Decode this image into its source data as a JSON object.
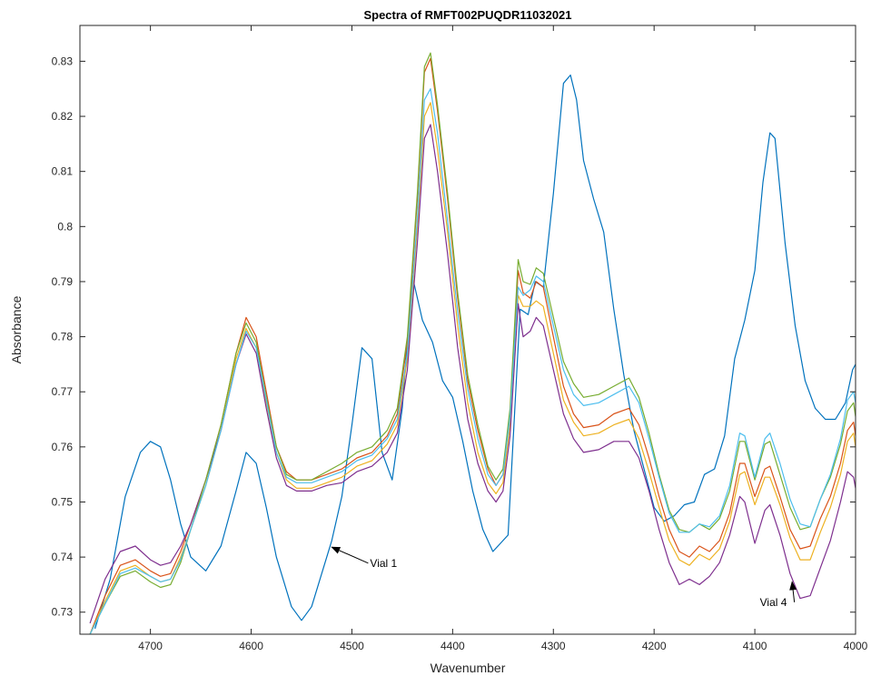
{
  "chart_data": {
    "type": "line",
    "title": "Spectra of RMFT002PUQDR11032021",
    "xlabel": "Wavenumber",
    "ylabel": "Absorbance",
    "xlim": [
      4000,
      4770
    ],
    "ylim": [
      0.726,
      0.8365
    ],
    "x_reversed": true,
    "grid": false,
    "x_ticks": [
      4700,
      4600,
      4500,
      4400,
      4300,
      4200,
      4100,
      4000
    ],
    "y_ticks": [
      0.73,
      0.74,
      0.75,
      0.76,
      0.77,
      0.78,
      0.79,
      0.8,
      0.81,
      0.82,
      0.83
    ],
    "x_tick_labels": [
      "4700",
      "4600",
      "4500",
      "4400",
      "4300",
      "4200",
      "4100",
      "4000"
    ],
    "y_tick_labels": [
      "0.73",
      "0.74",
      "0.75",
      "0.76",
      "0.77",
      "0.78",
      "0.79",
      "0.8",
      "0.81",
      "0.82",
      "0.83"
    ],
    "series": [
      {
        "color": "#0072BD",
        "x": [
          4755,
          4740,
          4725,
          4710,
          4700,
          4690,
          4680,
          4670,
          4660,
          4645,
          4630,
          4615,
          4605,
          4595,
          4585,
          4575,
          4560,
          4550,
          4540,
          4530,
          4520,
          4510,
          4500,
          4490,
          4480,
          4470,
          4460,
          4450,
          4440,
          4430,
          4420,
          4410,
          4400,
          4390,
          4380,
          4370,
          4360,
          4345,
          4333,
          4325,
          4318,
          4310,
          4300,
          4290,
          4283,
          4277,
          4270,
          4260,
          4250,
          4240,
          4230,
          4220,
          4210,
          4200,
          4190,
          4180,
          4170,
          4160,
          4150,
          4140,
          4130,
          4120,
          4110,
          4100,
          4092,
          4085,
          4080,
          4070,
          4060,
          4050,
          4040,
          4030,
          4020,
          4010,
          4003,
          4000
        ],
        "y": [
          0.727,
          0.736,
          0.751,
          0.759,
          0.761,
          0.76,
          0.754,
          0.746,
          0.74,
          0.7375,
          0.742,
          0.752,
          0.759,
          0.757,
          0.749,
          0.74,
          0.731,
          0.7285,
          0.731,
          0.737,
          0.743,
          0.751,
          0.764,
          0.778,
          0.776,
          0.759,
          0.754,
          0.767,
          0.791,
          0.783,
          0.779,
          0.772,
          0.769,
          0.761,
          0.752,
          0.745,
          0.741,
          0.744,
          0.785,
          0.784,
          0.79,
          0.789,
          0.806,
          0.826,
          0.8275,
          0.823,
          0.812,
          0.805,
          0.799,
          0.785,
          0.773,
          0.763,
          0.756,
          0.749,
          0.7465,
          0.7475,
          0.7495,
          0.75,
          0.755,
          0.756,
          0.762,
          0.776,
          0.783,
          0.792,
          0.808,
          0.817,
          0.816,
          0.797,
          0.782,
          0.772,
          0.767,
          0.765,
          0.765,
          0.768,
          0.774,
          0.775
        ]
      },
      {
        "color": "#D95319",
        "x": [
          4760,
          4745,
          4730,
          4715,
          4700,
          4690,
          4680,
          4670,
          4660,
          4645,
          4630,
          4615,
          4605,
          4595,
          4585,
          4575,
          4565,
          4555,
          4540,
          4525,
          4510,
          4495,
          4480,
          4465,
          4455,
          4445,
          4435,
          4428,
          4422,
          4415,
          4405,
          4395,
          4385,
          4375,
          4365,
          4357,
          4350,
          4343,
          4335,
          4330,
          4323,
          4317,
          4310,
          4300,
          4290,
          4280,
          4270,
          4255,
          4240,
          4225,
          4215,
          4205,
          4195,
          4185,
          4175,
          4165,
          4155,
          4145,
          4135,
          4125,
          4115,
          4110,
          4100,
          4090,
          4085,
          4075,
          4065,
          4055,
          4045,
          4035,
          4025,
          4015,
          4008,
          4002,
          4000
        ],
        "y": [
          0.726,
          0.733,
          0.7385,
          0.7395,
          0.7375,
          0.7365,
          0.737,
          0.741,
          0.746,
          0.754,
          0.764,
          0.777,
          0.7835,
          0.78,
          0.77,
          0.76,
          0.7555,
          0.754,
          0.754,
          0.755,
          0.756,
          0.758,
          0.759,
          0.762,
          0.766,
          0.779,
          0.805,
          0.828,
          0.8305,
          0.821,
          0.805,
          0.787,
          0.772,
          0.763,
          0.756,
          0.753,
          0.755,
          0.766,
          0.792,
          0.788,
          0.787,
          0.79,
          0.789,
          0.78,
          0.771,
          0.766,
          0.7635,
          0.764,
          0.766,
          0.767,
          0.764,
          0.758,
          0.751,
          0.745,
          0.741,
          0.74,
          0.742,
          0.741,
          0.743,
          0.748,
          0.757,
          0.757,
          0.751,
          0.756,
          0.7565,
          0.751,
          0.745,
          0.7415,
          0.742,
          0.747,
          0.751,
          0.757,
          0.763,
          0.7645,
          0.762
        ]
      },
      {
        "color": "#EDB120",
        "x": [
          4760,
          4745,
          4730,
          4715,
          4700,
          4690,
          4680,
          4670,
          4660,
          4645,
          4630,
          4615,
          4605,
          4595,
          4585,
          4575,
          4565,
          4555,
          4540,
          4525,
          4510,
          4495,
          4480,
          4465,
          4455,
          4445,
          4435,
          4428,
          4422,
          4415,
          4405,
          4395,
          4385,
          4375,
          4365,
          4357,
          4350,
          4343,
          4335,
          4330,
          4323,
          4317,
          4310,
          4300,
          4290,
          4280,
          4270,
          4255,
          4240,
          4225,
          4215,
          4205,
          4195,
          4185,
          4175,
          4165,
          4155,
          4145,
          4135,
          4125,
          4115,
          4110,
          4100,
          4090,
          4085,
          4075,
          4065,
          4055,
          4045,
          4035,
          4025,
          4015,
          4008,
          4002,
          4000
        ],
        "y": [
          0.726,
          0.732,
          0.7375,
          0.7385,
          0.7365,
          0.7355,
          0.736,
          0.74,
          0.745,
          0.753,
          0.763,
          0.776,
          0.7815,
          0.778,
          0.768,
          0.759,
          0.754,
          0.7525,
          0.7525,
          0.7535,
          0.7545,
          0.7565,
          0.7575,
          0.7605,
          0.764,
          0.776,
          0.8,
          0.82,
          0.8225,
          0.814,
          0.799,
          0.782,
          0.768,
          0.759,
          0.7535,
          0.7515,
          0.7535,
          0.764,
          0.7875,
          0.7855,
          0.7855,
          0.7865,
          0.7855,
          0.777,
          0.7685,
          0.7645,
          0.762,
          0.7625,
          0.764,
          0.765,
          0.7615,
          0.7555,
          0.749,
          0.743,
          0.7395,
          0.7385,
          0.7405,
          0.7395,
          0.7415,
          0.7465,
          0.755,
          0.7555,
          0.7495,
          0.7545,
          0.7545,
          0.7495,
          0.7435,
          0.7395,
          0.7395,
          0.7445,
          0.749,
          0.755,
          0.761,
          0.7625,
          0.76
        ]
      },
      {
        "color": "#7E2F8E",
        "x": [
          4760,
          4745,
          4730,
          4715,
          4700,
          4690,
          4680,
          4670,
          4660,
          4645,
          4630,
          4615,
          4605,
          4595,
          4585,
          4575,
          4565,
          4555,
          4540,
          4525,
          4510,
          4495,
          4480,
          4465,
          4455,
          4445,
          4435,
          4428,
          4422,
          4415,
          4405,
          4395,
          4385,
          4375,
          4365,
          4357,
          4350,
          4343,
          4335,
          4330,
          4323,
          4317,
          4310,
          4300,
          4290,
          4280,
          4270,
          4255,
          4240,
          4225,
          4215,
          4205,
          4195,
          4185,
          4175,
          4165,
          4155,
          4145,
          4135,
          4125,
          4115,
          4110,
          4100,
          4090,
          4085,
          4075,
          4065,
          4055,
          4045,
          4035,
          4025,
          4015,
          4008,
          4002,
          4000
        ],
        "y": [
          0.728,
          0.736,
          0.741,
          0.742,
          0.7395,
          0.7385,
          0.739,
          0.742,
          0.746,
          0.754,
          0.763,
          0.775,
          0.7805,
          0.777,
          0.767,
          0.758,
          0.753,
          0.752,
          0.752,
          0.753,
          0.7535,
          0.7555,
          0.7565,
          0.759,
          0.7625,
          0.774,
          0.797,
          0.816,
          0.8185,
          0.81,
          0.795,
          0.778,
          0.765,
          0.757,
          0.752,
          0.75,
          0.752,
          0.762,
          0.786,
          0.78,
          0.781,
          0.7835,
          0.782,
          0.774,
          0.766,
          0.7615,
          0.759,
          0.7595,
          0.761,
          0.761,
          0.758,
          0.752,
          0.745,
          0.739,
          0.735,
          0.736,
          0.735,
          0.7365,
          0.739,
          0.744,
          0.751,
          0.75,
          0.7425,
          0.7485,
          0.7495,
          0.744,
          0.737,
          0.7325,
          0.733,
          0.738,
          0.743,
          0.75,
          0.7555,
          0.7545,
          0.7525
        ]
      },
      {
        "color": "#77AC30",
        "x": [
          4760,
          4745,
          4730,
          4715,
          4700,
          4690,
          4680,
          4670,
          4660,
          4645,
          4630,
          4615,
          4605,
          4595,
          4585,
          4575,
          4565,
          4555,
          4540,
          4525,
          4510,
          4495,
          4480,
          4465,
          4455,
          4445,
          4435,
          4428,
          4422,
          4415,
          4405,
          4395,
          4385,
          4375,
          4365,
          4357,
          4350,
          4343,
          4335,
          4330,
          4323,
          4317,
          4310,
          4300,
          4290,
          4280,
          4270,
          4255,
          4240,
          4225,
          4215,
          4205,
          4195,
          4185,
          4175,
          4165,
          4155,
          4145,
          4135,
          4125,
          4115,
          4110,
          4100,
          4090,
          4085,
          4075,
          4065,
          4055,
          4045,
          4035,
          4025,
          4015,
          4008,
          4002,
          4000
        ],
        "y": [
          0.726,
          0.7315,
          0.7365,
          0.7375,
          0.7355,
          0.7345,
          0.735,
          0.739,
          0.745,
          0.754,
          0.764,
          0.777,
          0.7825,
          0.779,
          0.769,
          0.76,
          0.755,
          0.754,
          0.754,
          0.7555,
          0.757,
          0.759,
          0.76,
          0.763,
          0.767,
          0.78,
          0.806,
          0.829,
          0.8315,
          0.822,
          0.806,
          0.788,
          0.773,
          0.764,
          0.7565,
          0.754,
          0.756,
          0.767,
          0.794,
          0.79,
          0.7895,
          0.7925,
          0.7915,
          0.7835,
          0.7755,
          0.7715,
          0.769,
          0.7695,
          0.771,
          0.7725,
          0.769,
          0.7625,
          0.755,
          0.7485,
          0.745,
          0.7445,
          0.746,
          0.745,
          0.747,
          0.752,
          0.761,
          0.761,
          0.754,
          0.7605,
          0.761,
          0.755,
          0.749,
          0.745,
          0.7455,
          0.7505,
          0.7545,
          0.7605,
          0.7665,
          0.768,
          0.7655
        ]
      },
      {
        "color": "#4DBEEE",
        "x": [
          4760,
          4745,
          4730,
          4715,
          4700,
          4690,
          4680,
          4670,
          4660,
          4645,
          4630,
          4615,
          4605,
          4595,
          4585,
          4575,
          4565,
          4555,
          4540,
          4525,
          4510,
          4495,
          4480,
          4465,
          4455,
          4445,
          4435,
          4428,
          4422,
          4415,
          4405,
          4395,
          4385,
          4375,
          4365,
          4357,
          4350,
          4343,
          4335,
          4330,
          4323,
          4317,
          4310,
          4300,
          4290,
          4280,
          4270,
          4255,
          4240,
          4225,
          4215,
          4205,
          4195,
          4185,
          4175,
          4165,
          4155,
          4145,
          4135,
          4125,
          4115,
          4110,
          4100,
          4090,
          4085,
          4075,
          4065,
          4055,
          4045,
          4035,
          4025,
          4015,
          4008,
          4002,
          4000
        ],
        "y": [
          0.726,
          0.7315,
          0.737,
          0.738,
          0.7365,
          0.7355,
          0.736,
          0.7395,
          0.745,
          0.753,
          0.763,
          0.775,
          0.781,
          0.778,
          0.7685,
          0.759,
          0.7545,
          0.7535,
          0.7535,
          0.7545,
          0.7555,
          0.7575,
          0.7585,
          0.7615,
          0.765,
          0.777,
          0.8015,
          0.823,
          0.825,
          0.817,
          0.801,
          0.7845,
          0.7705,
          0.7615,
          0.755,
          0.753,
          0.755,
          0.7655,
          0.789,
          0.7875,
          0.7885,
          0.791,
          0.79,
          0.782,
          0.774,
          0.7695,
          0.7675,
          0.768,
          0.7695,
          0.771,
          0.768,
          0.7615,
          0.7545,
          0.748,
          0.7445,
          0.7445,
          0.746,
          0.7455,
          0.7475,
          0.753,
          0.7625,
          0.762,
          0.7545,
          0.7615,
          0.7625,
          0.757,
          0.7505,
          0.746,
          0.7455,
          0.7505,
          0.755,
          0.7615,
          0.7685,
          0.77,
          0.768
        ]
      }
    ],
    "annotations": [
      {
        "text": "Vial 1",
        "x": 4482,
        "y": 0.7389,
        "arrow_to": [
          4520,
          0.7418
        ]
      },
      {
        "text": "Vial 4",
        "x": 4095,
        "y": 0.7318,
        "arrow_to": [
          4063,
          0.7355
        ]
      }
    ]
  }
}
